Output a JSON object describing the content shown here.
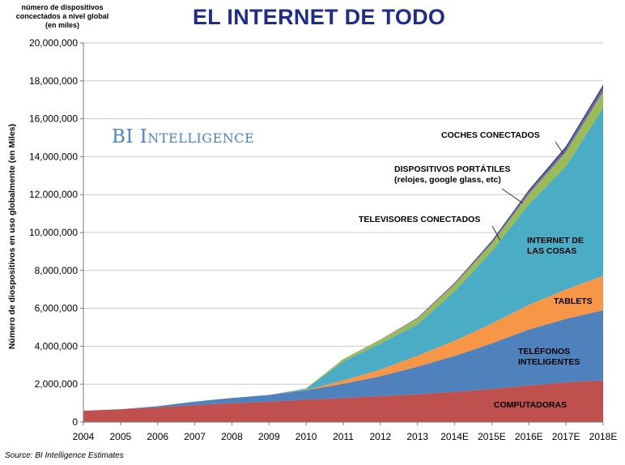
{
  "header": {
    "note_lines": [
      "número de dispositivos",
      "concectados a nivel global",
      "(en miles)"
    ],
    "title": "EL INTERNET DE TODO"
  },
  "watermark": "BI Intelligence",
  "source": "Source: BI Intelligence Estimates",
  "chart_data": {
    "type": "area",
    "stacked": true,
    "title": "EL INTERNET DE TODO",
    "ylabel": "Número de diospositivos en uso globalmente (en Miles)",
    "xlabel": "",
    "ylim": [
      0,
      20000000
    ],
    "yticks": [
      0,
      2000000,
      4000000,
      6000000,
      8000000,
      10000000,
      12000000,
      14000000,
      16000000,
      18000000,
      20000000
    ],
    "ytick_labels": [
      "0",
      "2,000,000",
      "4,000,000",
      "6,000,000",
      "8,000,000",
      "10,000,000",
      "12,000,000",
      "14,000,000",
      "16,000,000",
      "18,000,000",
      "20,000,000"
    ],
    "x": [
      "2004",
      "2005",
      "2006",
      "2007",
      "2008",
      "2009",
      "2010",
      "2011",
      "2012",
      "2013",
      "2014E",
      "2015E",
      "2016E",
      "2017E",
      "2018E"
    ],
    "grid": true,
    "series": [
      {
        "name": "COMPUTADORAS",
        "color": "#c0504d",
        "values": [
          600000,
          680000,
          780000,
          900000,
          1000000,
          1080000,
          1180000,
          1270000,
          1370000,
          1470000,
          1590000,
          1750000,
          1930000,
          2100000,
          2200000
        ]
      },
      {
        "name": "TELÉFONOS INTELIGENTES",
        "color": "#4f81bd",
        "values": [
          0,
          0,
          60000,
          180000,
          270000,
          350000,
          500000,
          750000,
          1050000,
          1450000,
          1900000,
          2400000,
          2950000,
          3350000,
          3700000
        ]
      },
      {
        "name": "TABLETS",
        "color": "#f79646",
        "values": [
          0,
          0,
          0,
          0,
          0,
          0,
          20000,
          180000,
          350000,
          580000,
          800000,
          1050000,
          1300000,
          1550000,
          1820000
        ]
      },
      {
        "name": "INTERNET DE LAS COSAS",
        "color": "#4bacc6",
        "values": [
          0,
          0,
          0,
          0,
          0,
          0,
          60000,
          1000000,
          1380000,
          1650000,
          2600000,
          3800000,
          5300000,
          6500000,
          8850000
        ]
      },
      {
        "name": "TELEVISORES CONECTADOS",
        "color": "#9bbb59",
        "values": [
          0,
          0,
          0,
          0,
          0,
          0,
          20000,
          130000,
          180000,
          300000,
          380000,
          420000,
          550000,
          750000,
          850000
        ]
      },
      {
        "name": "DISPOSITIVOS PORTÁTILES (relojes, google glass, etc)",
        "color": "#8064a2",
        "values": [
          0,
          0,
          0,
          0,
          0,
          0,
          0,
          0,
          10000,
          30000,
          50000,
          80000,
          120000,
          170000,
          220000
        ]
      },
      {
        "name": "COCHES CONECTADOS",
        "color": "#2c4d75",
        "values": [
          0,
          0,
          0,
          0,
          0,
          0,
          0,
          0,
          10000,
          20000,
          30000,
          60000,
          100000,
          130000,
          160000
        ]
      }
    ],
    "annotations": [
      {
        "lines": [
          "COMPUTADORAS"
        ]
      },
      {
        "lines": [
          "TELÉFONOS",
          "INTELIGENTES"
        ]
      },
      {
        "lines": [
          "TABLETS"
        ]
      },
      {
        "lines": [
          "INTERNET DE",
          "LAS COSAS"
        ]
      },
      {
        "lines": [
          "TELEVISORES CONECTADOS"
        ]
      },
      {
        "lines": [
          "DISPOSITIVOS PORTÁTILES",
          "(relojes, google glass, etc)"
        ]
      },
      {
        "lines": [
          "COCHES CONECTADOS"
        ]
      }
    ]
  }
}
